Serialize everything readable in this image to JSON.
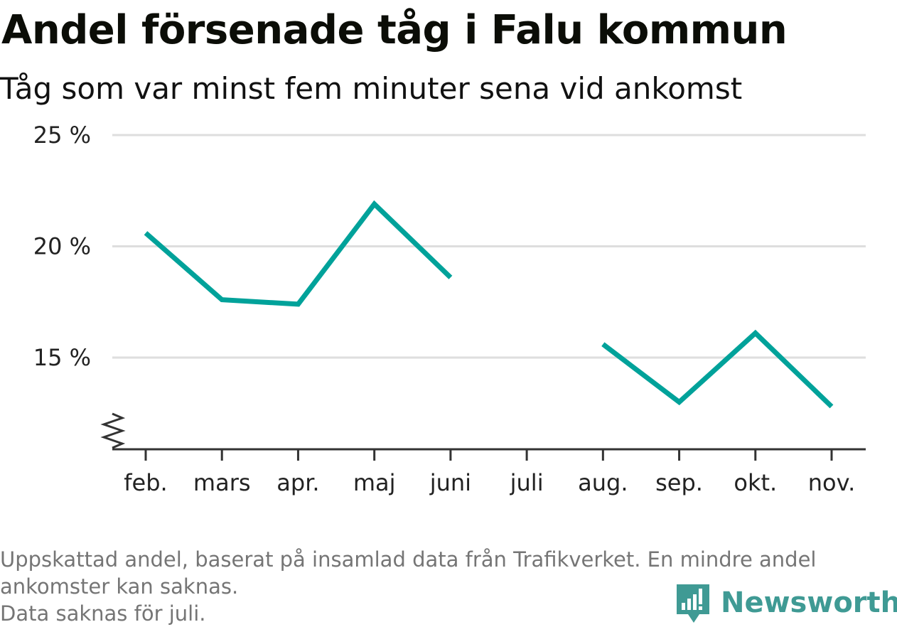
{
  "header": {
    "title": "Andel försenade tåg i Falu kommun",
    "subtitle": "Tåg som var minst fem minuter sena vid ankomst"
  },
  "chart_data": {
    "type": "line",
    "categories": [
      "feb.",
      "mars",
      "apr.",
      "maj",
      "juni",
      "juli",
      "aug.",
      "sep.",
      "okt.",
      "nov."
    ],
    "series": [
      {
        "values": [
          20.6,
          17.6,
          17.4,
          21.9,
          18.6,
          null,
          15.6,
          13.0,
          16.1,
          12.8
        ]
      }
    ],
    "yticks": [
      15,
      20,
      25
    ],
    "ytick_labels": [
      "15 %",
      "20 %",
      "25 %"
    ],
    "ylim": [
      11,
      25
    ],
    "y_axis_break": true,
    "grid": true,
    "line_color": "#00a29a",
    "grid_color": "#dedede",
    "axis_color": "#333333"
  },
  "footnote": {
    "lines": [
      "Uppskattad andel, baserat på insamlad data från Trafikverket. En mindre andel",
      "ankomster kan saknas.",
      "Data saknas för juli."
    ]
  },
  "brand": {
    "name": "Newsworthy",
    "icon": "newsworthy-logo-icon",
    "color": "#3f9a94"
  }
}
